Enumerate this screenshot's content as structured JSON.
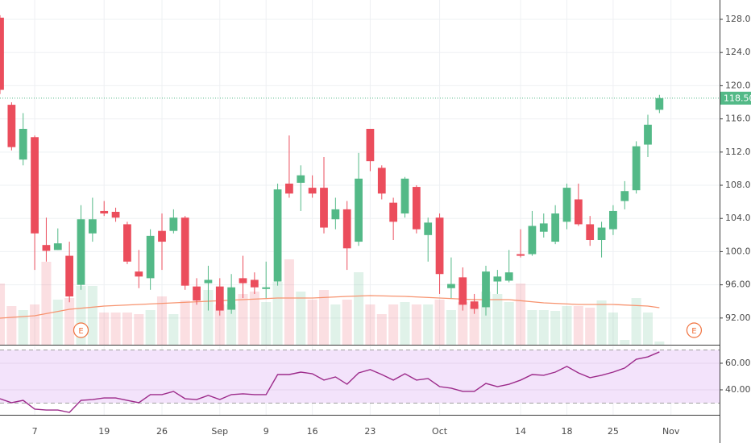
{
  "chart_data": [
    {
      "type": "candlestick",
      "x": [
        0,
        1,
        2,
        3,
        4,
        5,
        6,
        7,
        8,
        9,
        10,
        11,
        12,
        13,
        14,
        15,
        16,
        17,
        18,
        19,
        20,
        21,
        22,
        23,
        24,
        25,
        26,
        27,
        28,
        29,
        30,
        31,
        32,
        33,
        34,
        35,
        36,
        37,
        38,
        39,
        40,
        41,
        42,
        43,
        44,
        45,
        46,
        47,
        48,
        49,
        50,
        51,
        52,
        53,
        54,
        55,
        56,
        57
      ],
      "open": [
        128.2,
        117.7,
        111.1,
        113.8,
        100.8,
        100.2,
        99.5,
        96.0,
        102.2,
        104.9,
        104.8,
        103.3,
        97.6,
        96.8,
        102.5,
        102.5,
        104.1,
        95.8,
        96.2,
        95.8,
        93.0,
        96.8,
        96.6,
        95.5,
        96.4,
        108.2,
        108.3,
        107.7,
        107.7,
        103.9,
        105.1,
        101.2,
        114.8,
        110.1,
        105.9,
        104.6,
        107.8,
        102.0,
        104.1,
        95.6,
        96.9,
        94.0,
        93.3,
        96.4,
        96.5,
        99.7,
        99.7,
        102.4,
        101.2,
        103.6,
        106.3,
        103.3,
        101.4,
        102.7,
        106.1,
        107.4,
        112.9,
        117.1
      ],
      "high": [
        128.5,
        118.0,
        116.7,
        114.0,
        104.1,
        102.8,
        101.2,
        105.6,
        106.5,
        106.1,
        105.3,
        103.6,
        100.2,
        102.7,
        104.6,
        105.1,
        104.3,
        96.8,
        98.3,
        96.8,
        97.3,
        99.5,
        97.5,
        98.8,
        108.2,
        114.0,
        110.4,
        109.2,
        111.4,
        106.5,
        106.1,
        111.9,
        114.8,
        110.4,
        106.5,
        109.0,
        108.0,
        104.1,
        104.6,
        99.3,
        98.1,
        94.9,
        98.3,
        97.8,
        100.2,
        102.7,
        104.9,
        104.6,
        105.6,
        108.2,
        108.2,
        104.3,
        103.6,
        105.6,
        108.5,
        113.3,
        116.5,
        118.9
      ],
      "low": [
        119.0,
        112.2,
        110.4,
        97.8,
        98.8,
        100.2,
        93.9,
        95.4,
        101.2,
        104.3,
        103.6,
        98.5,
        95.6,
        95.4,
        97.8,
        102.2,
        95.4,
        93.6,
        92.9,
        92.3,
        92.5,
        94.4,
        94.9,
        94.4,
        95.9,
        106.5,
        104.9,
        106.5,
        102.2,
        102.7,
        97.8,
        100.7,
        109.7,
        106.3,
        101.4,
        104.1,
        102.2,
        98.8,
        94.9,
        94.4,
        92.9,
        92.5,
        92.3,
        94.9,
        96.3,
        99.3,
        99.5,
        101.7,
        100.9,
        102.7,
        103.1,
        100.7,
        99.3,
        102.0,
        105.1,
        107.0,
        111.4,
        116.7
      ],
      "close": [
        119.5,
        112.6,
        114.8,
        102.2,
        100.1,
        101.0,
        94.6,
        103.9,
        103.9,
        104.6,
        104.1,
        98.8,
        97.0,
        101.9,
        101.2,
        104.1,
        95.9,
        94.1,
        96.6,
        92.9,
        95.7,
        96.2,
        95.7,
        95.7,
        107.5,
        107.0,
        109.2,
        107.0,
        102.9,
        105.1,
        100.4,
        108.8,
        110.9,
        107.0,
        103.6,
        108.8,
        102.7,
        103.5,
        97.3,
        96.1,
        93.6,
        93.1,
        97.6,
        97.0,
        97.5,
        99.5,
        103.1,
        103.4,
        104.6,
        107.7,
        103.3,
        101.4,
        102.9,
        104.9,
        107.3,
        112.7,
        115.3,
        118.5
      ],
      "up_color": "#53b987",
      "down_color": "#eb4d5c",
      "volume": [
        76,
        48,
        43,
        50,
        103,
        56,
        58,
        73,
        73,
        40,
        40,
        40,
        38,
        43,
        60,
        38,
        55,
        53,
        68,
        50,
        50,
        63,
        66,
        53,
        78,
        106,
        66,
        56,
        68,
        50,
        56,
        90,
        50,
        38,
        50,
        53,
        50,
        50,
        56,
        43,
        53,
        50,
        66,
        63,
        53,
        76,
        43,
        43,
        42,
        48,
        48,
        46,
        55,
        40,
        6,
        58,
        40,
        4
      ],
      "volume_ylim": [
        0,
        404
      ],
      "volume_ma": {
        "x": [
          0,
          3,
          6,
          9,
          12,
          15,
          18,
          21,
          24,
          27,
          30,
          32,
          35,
          38,
          41,
          44,
          47,
          50,
          53,
          56,
          57
        ],
        "values": [
          33,
          36,
          44,
          48,
          50,
          52,
          54,
          56,
          58,
          58,
          60,
          61,
          60,
          58,
          56,
          56,
          52,
          50,
          50,
          48,
          46
        ],
        "color": "#f7936f"
      },
      "xlim": [
        0,
        62.2
      ],
      "ylim": [
        88.78,
        130.33
      ],
      "yticks": [
        {
          "value": 92,
          "label": "92.00"
        },
        {
          "value": 96,
          "label": "96.00"
        },
        {
          "value": 100,
          "label": "100.00"
        },
        {
          "value": 104,
          "label": "104.00"
        },
        {
          "value": 108,
          "label": "108.00"
        },
        {
          "value": 112,
          "label": "112.00"
        },
        {
          "value": 116,
          "label": "116.00"
        },
        {
          "value": 120,
          "label": "120.00"
        },
        {
          "value": 124,
          "label": "124.00"
        },
        {
          "value": 128,
          "label": "128.00"
        }
      ],
      "last_price": {
        "value": 118.5,
        "label": "118.50"
      },
      "annotations": [
        {
          "x": 7,
          "text": "E"
        },
        {
          "x": 60,
          "text": "E"
        }
      ],
      "grid": true
    },
    {
      "type": "line",
      "x": [
        0,
        1,
        2,
        3,
        4,
        5,
        6,
        7,
        8,
        9,
        10,
        11,
        12,
        13,
        14,
        15,
        16,
        17,
        18,
        19,
        20,
        21,
        22,
        23,
        24,
        25,
        26,
        27,
        28,
        29,
        30,
        31,
        32,
        33,
        34,
        35,
        36,
        37,
        38,
        39,
        40,
        41,
        42,
        43,
        44,
        45,
        46,
        47,
        48,
        49,
        50,
        51,
        52,
        53,
        54,
        55,
        56,
        57
      ],
      "values": [
        33.3,
        30.3,
        32.1,
        25.5,
        24.8,
        24.8,
        23,
        32.1,
        32.7,
        33.9,
        33.9,
        32.1,
        30.3,
        36.4,
        36.4,
        38.8,
        33.3,
        32.7,
        35.8,
        32.7,
        36.4,
        37,
        36.4,
        36.4,
        51.5,
        51.5,
        53.3,
        52.1,
        47.3,
        49.7,
        44.2,
        52.7,
        55.2,
        51.5,
        47.3,
        52.1,
        47.3,
        48.5,
        42.4,
        41.2,
        38.8,
        38.8,
        44.8,
        42.4,
        44.2,
        47.3,
        51.5,
        50.9,
        53.3,
        57.6,
        52.7,
        49.1,
        50.9,
        53.3,
        56.4,
        63,
        64.8,
        68.5
      ],
      "color": "#9c2a8a",
      "bands": [
        30,
        70
      ],
      "band_color": "#f3e3fb",
      "xlim": [
        0,
        62.2
      ],
      "ylim": [
        21.2,
        72.7
      ],
      "yticks": [
        {
          "value": 40,
          "label": "40.00"
        },
        {
          "value": 60,
          "label": "60.00"
        }
      ],
      "xticks": [
        {
          "value": 3,
          "label": "7"
        },
        {
          "value": 9,
          "label": "19"
        },
        {
          "value": 14,
          "label": "26"
        },
        {
          "value": 19,
          "label": "Sep"
        },
        {
          "value": 23,
          "label": "9"
        },
        {
          "value": 27,
          "label": "16"
        },
        {
          "value": 32,
          "label": "23"
        },
        {
          "value": 38,
          "label": "Oct"
        },
        {
          "value": 45,
          "label": "14"
        },
        {
          "value": 49,
          "label": "18"
        },
        {
          "value": 53,
          "label": "25"
        },
        {
          "value": 58,
          "label": "Nov"
        }
      ],
      "grid": true
    }
  ]
}
